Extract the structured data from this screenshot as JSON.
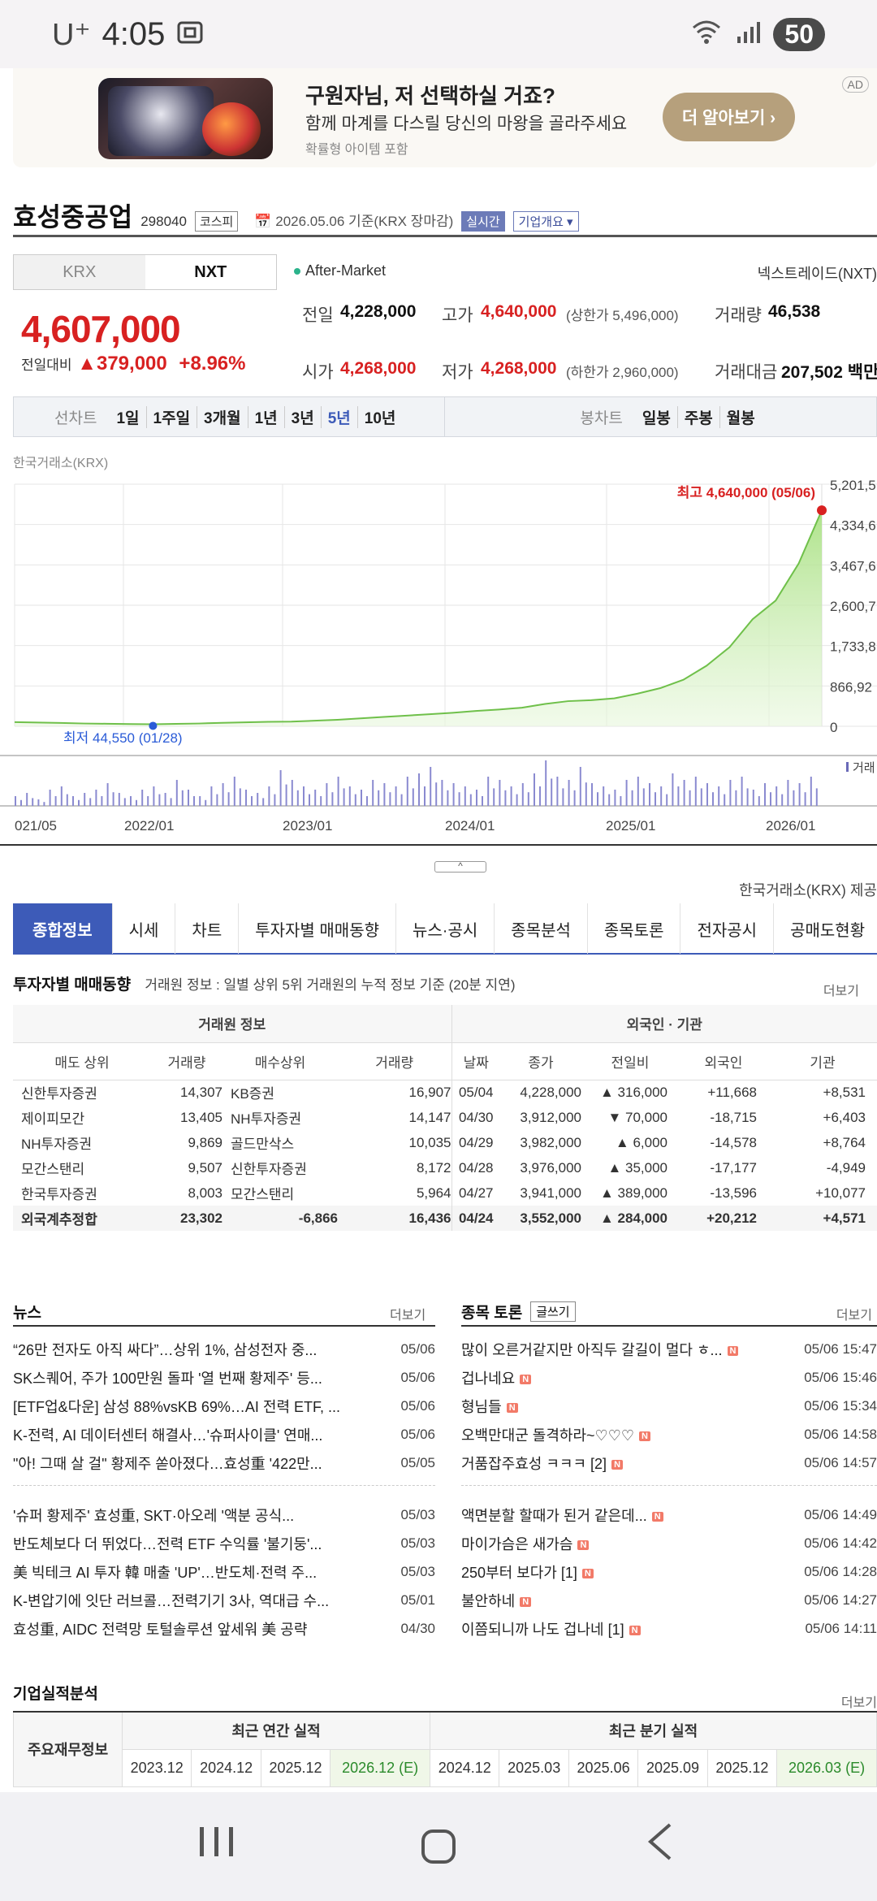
{
  "status": {
    "carrier": "U⁺",
    "time": "4:05",
    "battery": "50"
  },
  "ad": {
    "title": "구원자님, 저 선택하실 거죠?",
    "subtitle": "함께 마계를 다스릴 당신의 마왕을 골라주세요",
    "note": "확률형 아이템 포함",
    "button": "더 알아보기 ›",
    "tag": "AD"
  },
  "stock": {
    "name": "효성중공업",
    "code": "298040",
    "market": "코스피",
    "date": "2026.05.06 기준(KRX 장마감)",
    "realtime": "실시간",
    "company_info": "기업개요 ▾"
  },
  "market_tabs": [
    "KRX",
    "NXT"
  ],
  "after_market": "After-Market",
  "nxt_link": "넥스트레이드(NXT)",
  "price": {
    "current": "4,607,000",
    "change_label": "전일대비",
    "change": "▲379,000",
    "change_pct": "+8.96%"
  },
  "stats": {
    "prev_label": "전일",
    "prev": "4,228,000",
    "high_label": "고가",
    "high": "4,640,000",
    "upper": "(상한가 5,496,000)",
    "vol_label": "거래량",
    "vol": "46,538",
    "open_label": "시가",
    "open": "4,268,000",
    "low_label": "저가",
    "low": "4,268,000",
    "lower": "(하한가 2,960,000)",
    "amt_label": "거래대금",
    "amt": "207,502 백만"
  },
  "period": {
    "line_label": "선차트",
    "line_items": [
      "1일",
      "1주일",
      "3개월",
      "1년",
      "3년",
      "5년",
      "10년"
    ],
    "selected": "5년",
    "candle_label": "봉차트",
    "candle_items": [
      "일봉",
      "주봉",
      "월봉"
    ]
  },
  "chart_src": "한국거래소(KRX)",
  "chart_data": {
    "type": "area",
    "x_ticks": [
      "021/05",
      "2022/01",
      "2023/01",
      "2024/01",
      "2025/01",
      "2026/01"
    ],
    "y_ticks": [
      "5,201,5",
      "4,334,6",
      "3,467,6",
      "2,600,7",
      "1,733,8",
      "866,92",
      "0"
    ],
    "ylim": [
      0,
      5201500
    ],
    "max_label": "최고 4,640,000 (05/06)",
    "min_label": "최저 44,550 (01/28)",
    "volume_label": "거래",
    "series": [
      {
        "values": [
          90000,
          80000,
          72000,
          60000,
          55000,
          48000,
          44550,
          52000,
          60000,
          75000,
          85000,
          95000,
          100000,
          120000,
          140000,
          170000,
          200000,
          230000,
          260000,
          290000,
          330000,
          360000,
          400000,
          480000,
          540000,
          560000,
          600000,
          700000,
          820000,
          1000000,
          1300000,
          1700000,
          2300000,
          2700000,
          3500000,
          4640000
        ]
      }
    ],
    "volume": [
      3,
      4,
      2,
      5,
      6,
      3,
      4,
      5,
      7,
      4,
      3,
      5,
      6,
      4,
      8,
      5,
      3,
      6,
      7,
      9,
      5,
      4,
      6,
      11,
      8,
      6,
      5,
      7,
      9,
      6,
      5,
      8,
      7,
      6,
      9,
      10,
      12,
      8,
      7,
      6,
      5,
      9,
      8,
      6,
      7,
      10,
      14,
      9,
      8,
      12,
      7,
      6,
      5,
      8,
      9,
      7,
      6,
      10,
      8,
      9,
      7,
      6,
      8,
      9,
      5,
      7,
      6,
      8,
      7,
      9
    ]
  },
  "src_note": "한국거래소(KRX) 제공",
  "main_tabs": [
    "종합정보",
    "시세",
    "차트",
    "투자자별 매매동향",
    "뉴스·공시",
    "종목분석",
    "종목토론",
    "전자공시",
    "공매도현황"
  ],
  "trade": {
    "title": "투자자별 매매동향",
    "desc": "거래원 정보 : 일별 상위 5위 거래원의 누적 정보 기준 (20분 지연)",
    "more": "더보기",
    "group1": "거래원 정보",
    "group2": "외국인 · 기관",
    "headers": [
      "매도 상위",
      "거래량",
      "매수상위",
      "거래량",
      "날짜",
      "종가",
      "전일비",
      "외국인",
      "기관"
    ],
    "rows": [
      [
        "신한투자증권",
        "14,307",
        "KB증권",
        "16,907",
        "05/04",
        "4,228,000",
        "▲ 316,000",
        "+11,668",
        "+8,531"
      ],
      [
        "제이피모간",
        "13,405",
        "NH투자증권",
        "14,147",
        "04/30",
        "3,912,000",
        "▼ 70,000",
        "-18,715",
        "+6,403"
      ],
      [
        "NH투자증권",
        "9,869",
        "골드만삭스",
        "10,035",
        "04/29",
        "3,982,000",
        "▲ 6,000",
        "-14,578",
        "+8,764"
      ],
      [
        "모간스탠리",
        "9,507",
        "신한투자증권",
        "8,172",
        "04/28",
        "3,976,000",
        "▲ 35,000",
        "-17,177",
        "-4,949"
      ],
      [
        "한국투자증권",
        "8,003",
        "모간스탠리",
        "5,964",
        "04/27",
        "3,941,000",
        "▲ 389,000",
        "-13,596",
        "+10,077"
      ],
      [
        "외국계추정합",
        "23,302",
        "-6,866",
        "16,436",
        "04/24",
        "3,552,000",
        "▲ 284,000",
        "+20,212",
        "+4,571"
      ]
    ]
  },
  "news": {
    "title": "뉴스",
    "more": "더보기",
    "items": [
      {
        "t": "“26만 전자도 아직 싸다”…상위 1%, 삼성전자 중...",
        "d": "05/06"
      },
      {
        "t": "SK스퀘어, 주가 100만원 돌파 '열 번째 황제주' 등...",
        "d": "05/06"
      },
      {
        "t": "[ETF업&다운] 삼성 88%vsKB 69%…AI 전력 ETF, ...",
        "d": "05/06"
      },
      {
        "t": "K-전력, AI 데이터센터 해결사…'슈퍼사이클' 연매...",
        "d": "05/06"
      },
      {
        "t": "\"아! 그때 살 걸\" 황제주 쏟아졌다…효성重 '422만...",
        "d": "05/05"
      },
      {
        "t": "'슈퍼 황제주' 효성重, SKT·아오레 '액분 공식...",
        "d": "05/03"
      },
      {
        "t": "반도체보다 더 뛰었다…전력 ETF 수익률 '불기둥'...",
        "d": "05/03"
      },
      {
        "t": "美 빅테크 AI 투자 韓 매출 'UP'…반도체·전력 주...",
        "d": "05/03"
      },
      {
        "t": "K-변압기에 잇단 러브콜…전력기기 3사, 역대급 수...",
        "d": "05/01"
      },
      {
        "t": "효성重, AIDC 전력망 토털솔루션 앞세워 美 공략",
        "d": "04/30"
      }
    ]
  },
  "forum": {
    "title": "종목 토론",
    "write": "글쓰기",
    "more": "더보기",
    "items": [
      {
        "t": "많이 오른거같지만 아직두 갈길이 멀다 ㅎ...",
        "d": "05/06 15:47"
      },
      {
        "t": "겁나네요",
        "d": "05/06 15:46"
      },
      {
        "t": "형님들",
        "d": "05/06 15:34"
      },
      {
        "t": "오백만대군 돌격하라~♡♡♡",
        "d": "05/06 14:58"
      },
      {
        "t": "거품잡주효성 ㅋㅋㅋ [2]",
        "d": "05/06 14:57"
      },
      {
        "t": "액면분할 할때가 된거 같은데...",
        "d": "05/06 14:49"
      },
      {
        "t": "마이가슴은 새가슴",
        "d": "05/06 14:42"
      },
      {
        "t": "250부터 보다가 [1]",
        "d": "05/06 14:28"
      },
      {
        "t": "불안하네",
        "d": "05/06 14:27"
      },
      {
        "t": "이쯤되니까 나도 겁나네 [1]",
        "d": "05/06 14:11"
      }
    ]
  },
  "perf": {
    "title": "기업실적분석",
    "more": "더보기",
    "row_label": "주요재무정보",
    "annual": "최근 연간 실적",
    "quarter": "최근 분기 실적",
    "annual_years": [
      "2023.12",
      "2024.12",
      "2025.12",
      "2026.12 (E)"
    ],
    "quarter_years": [
      "2024.12",
      "2025.03",
      "2025.06",
      "2025.09",
      "2025.12",
      "2026.03 (E)"
    ]
  },
  "colors": {
    "accent": "#3d5bb8",
    "up": "#d82121",
    "down": "#2a5bd7",
    "area": "#8fd16b"
  }
}
